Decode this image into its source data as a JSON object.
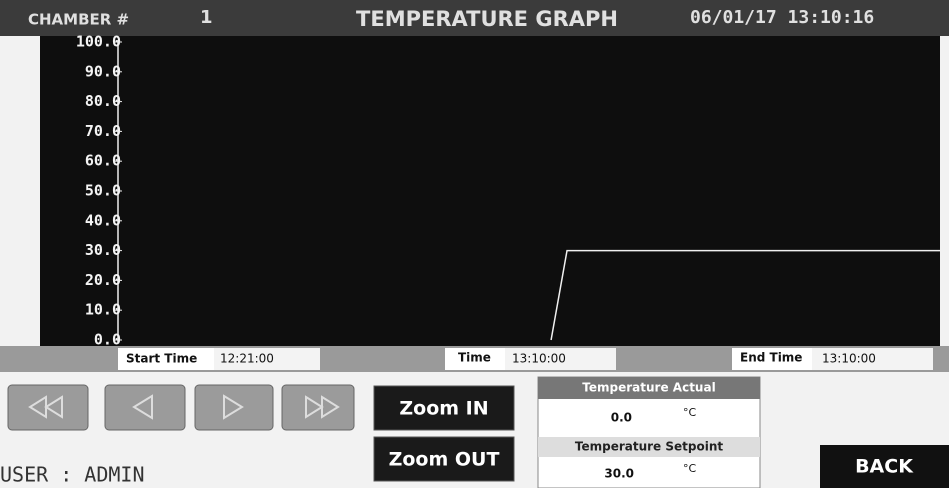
{
  "header": {
    "chamber_label": "CHAMBER #",
    "chamber_number": "1",
    "datetime": "06/01/17 13:10:16"
  },
  "chart_data": {
    "type": "line",
    "title": "TEMPERATURE GRAPH",
    "xlim": [
      "12:21:00",
      "13:10:00"
    ],
    "ylim": [
      0,
      100
    ],
    "yticks": [
      {
        "value": 0,
        "label": "0.0"
      },
      {
        "value": 10,
        "label": "10.0"
      },
      {
        "value": 20,
        "label": "20.0"
      },
      {
        "value": 30,
        "label": "30.0"
      },
      {
        "value": 40,
        "label": "40.0"
      },
      {
        "value": 50,
        "label": "50.0"
      },
      {
        "value": 60,
        "label": "60.0"
      },
      {
        "value": 70,
        "label": "70.0"
      },
      {
        "value": 80,
        "label": "80.0"
      },
      {
        "value": 90,
        "label": "90.0"
      },
      {
        "value": 100,
        "label": "100.0"
      }
    ],
    "series": [
      {
        "color": "#f0f0f0",
        "x": [
          "12:46:49",
          "12:47:46",
          "13:10:00"
        ],
        "values": [
          0,
          30,
          30
        ]
      }
    ]
  },
  "time_bar": {
    "start_label": "Start Time",
    "time_label": "Time",
    "current": "13:10:00",
    "end_label": "End Time"
  },
  "controls": {
    "zoom_in": "Zoom IN",
    "zoom_out": "Zoom OUT",
    "back": "BACK"
  },
  "readouts": {
    "actual": {
      "label": "Temperature Actual",
      "value": "0.0",
      "unit": "°C"
    },
    "setpoint": {
      "label": "Temperature Setpoint",
      "value": "30.0",
      "unit": "°C"
    }
  },
  "footer": {
    "user": "USER : ADMIN"
  }
}
